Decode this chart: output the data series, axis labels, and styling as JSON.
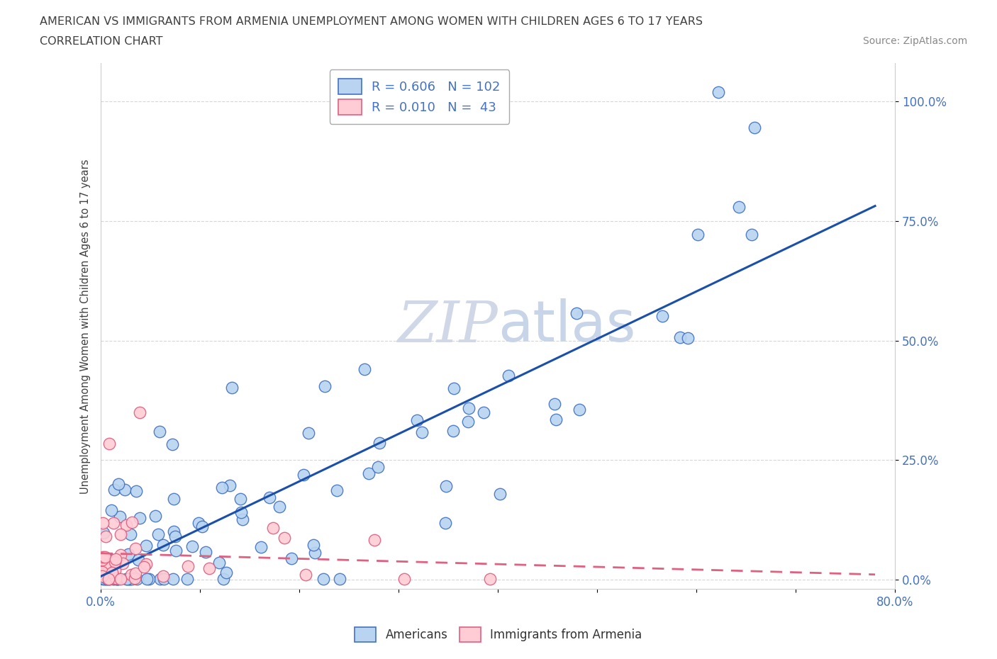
{
  "title_line1": "AMERICAN VS IMMIGRANTS FROM ARMENIA UNEMPLOYMENT AMONG WOMEN WITH CHILDREN AGES 6 TO 17 YEARS",
  "title_line2": "CORRELATION CHART",
  "source": "Source: ZipAtlas.com",
  "ylabel": "Unemployment Among Women with Children Ages 6 to 17 years",
  "xlim": [
    0.0,
    0.8
  ],
  "ylim": [
    -0.02,
    1.08
  ],
  "yticks": [
    0.0,
    0.25,
    0.5,
    0.75,
    1.0
  ],
  "ytick_labels": [
    "0.0%",
    "25.0%",
    "50.0%",
    "75.0%",
    "100.0%"
  ],
  "xticks": [
    0.0,
    0.1,
    0.2,
    0.3,
    0.4,
    0.5,
    0.6,
    0.7,
    0.8
  ],
  "xtick_labels": [
    "0.0%",
    "",
    "",
    "",
    "",
    "",
    "",
    "",
    "80.0%"
  ],
  "americans_R": 0.606,
  "americans_N": 102,
  "immigrants_R": 0.01,
  "immigrants_N": 43,
  "color_americans_face": "#b8d4f0",
  "color_americans_edge": "#4472c4",
  "color_immigrants_face": "#ffccd5",
  "color_immigrants_edge": "#e06080",
  "color_line_americans": "#1a4faa",
  "color_line_immigrants": "#e06080",
  "watermark_color": "#d0d8e8",
  "background_color": "#ffffff",
  "grid_color": "#cccccc",
  "title_color": "#404040",
  "tick_color": "#4472c4",
  "ylabel_color": "#404040",
  "source_color": "#888888"
}
